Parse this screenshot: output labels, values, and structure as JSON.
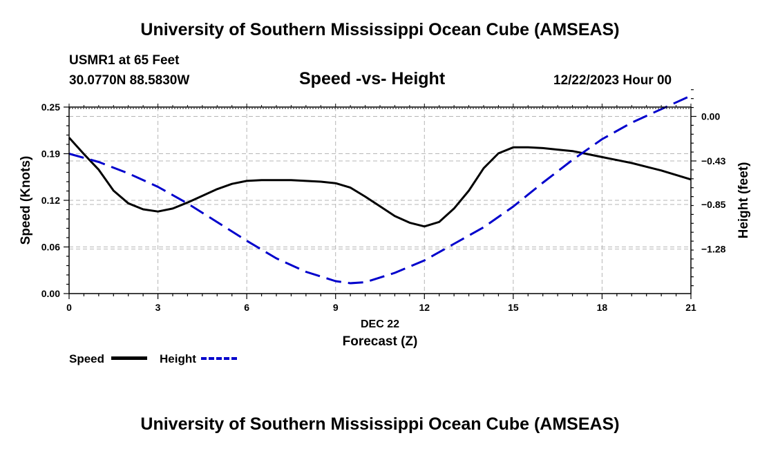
{
  "header": {
    "title": "University of Southern Mississippi Ocean Cube (AMSEAS)",
    "station": "USMR1 at 65 Feet",
    "location": "30.0770N  88.5830W",
    "subtitle": "Speed -vs- Height",
    "datetime": "12/22/2023 Hour 00"
  },
  "footer": {
    "title": "University of Southern Mississippi Ocean Cube (AMSEAS)"
  },
  "legend": {
    "items": [
      {
        "label": "Speed",
        "color": "#000000",
        "style": "solid"
      },
      {
        "label": "Height",
        "color": "#0000cc",
        "style": "dashed"
      }
    ]
  },
  "chart_data": {
    "type": "line",
    "xlabel": "Forecast (Z)",
    "date_label": "DEC 22",
    "xlim": [
      0,
      21
    ],
    "x_ticks": [
      0,
      3,
      6,
      9,
      12,
      15,
      18,
      21
    ],
    "x_tick_labels": [
      "0",
      "3",
      "6",
      "9",
      "12",
      "15",
      "18",
      "21"
    ],
    "left_axis": {
      "label": "Speed (Knots)",
      "lim": [
        0,
        0.25
      ],
      "ticks": [
        0.0,
        0.0625,
        0.125,
        0.1875,
        0.25
      ],
      "tick_labels": [
        "0.00",
        "0.06",
        "0.12",
        "0.19",
        "0.25"
      ]
    },
    "right_axis": {
      "label": "Height (feet)",
      "lim": [
        -1.71,
        0.09
      ],
      "ticks": [
        0.0,
        -0.43,
        -0.85,
        -1.28
      ],
      "tick_labels": [
        "0.00",
        "−0.43",
        "−0.85",
        "−1.28"
      ]
    },
    "grid": true,
    "series": [
      {
        "name": "Speed",
        "axis": "left",
        "color": "#000000",
        "dash": "solid",
        "x": [
          0,
          0.5,
          1,
          1.5,
          2,
          2.5,
          3,
          3.5,
          4,
          4.5,
          5,
          5.5,
          6,
          6.5,
          7,
          7.5,
          8,
          8.5,
          9,
          9.5,
          10,
          10.5,
          11,
          11.5,
          12,
          12.5,
          13,
          13.5,
          14,
          14.5,
          15,
          15.5,
          16,
          16.5,
          17,
          17.5,
          18,
          18.5,
          19,
          19.5,
          20,
          20.5,
          21
        ],
        "values": [
          0.209,
          0.187,
          0.166,
          0.138,
          0.121,
          0.113,
          0.11,
          0.114,
          0.122,
          0.131,
          0.14,
          0.147,
          0.151,
          0.152,
          0.152,
          0.152,
          0.151,
          0.15,
          0.148,
          0.142,
          0.13,
          0.117,
          0.104,
          0.095,
          0.09,
          0.096,
          0.114,
          0.138,
          0.168,
          0.188,
          0.196,
          0.196,
          0.195,
          0.193,
          0.191,
          0.187,
          0.183,
          0.179,
          0.175,
          0.17,
          0.165,
          0.159,
          0.153
        ]
      },
      {
        "name": "Height",
        "axis": "right",
        "color": "#0000cc",
        "dash": "dashed",
        "x": [
          0,
          1,
          2,
          3,
          4,
          5,
          6,
          7,
          8,
          9,
          9.5,
          10,
          11,
          12,
          13,
          14,
          15,
          16,
          17,
          18,
          19,
          20,
          21
        ],
        "values": [
          -0.36,
          -0.44,
          -0.55,
          -0.68,
          -0.84,
          -1.02,
          -1.2,
          -1.37,
          -1.5,
          -1.59,
          -1.61,
          -1.6,
          -1.51,
          -1.39,
          -1.23,
          -1.07,
          -0.87,
          -0.64,
          -0.42,
          -0.22,
          -0.06,
          0.07,
          0.2
        ]
      }
    ]
  }
}
